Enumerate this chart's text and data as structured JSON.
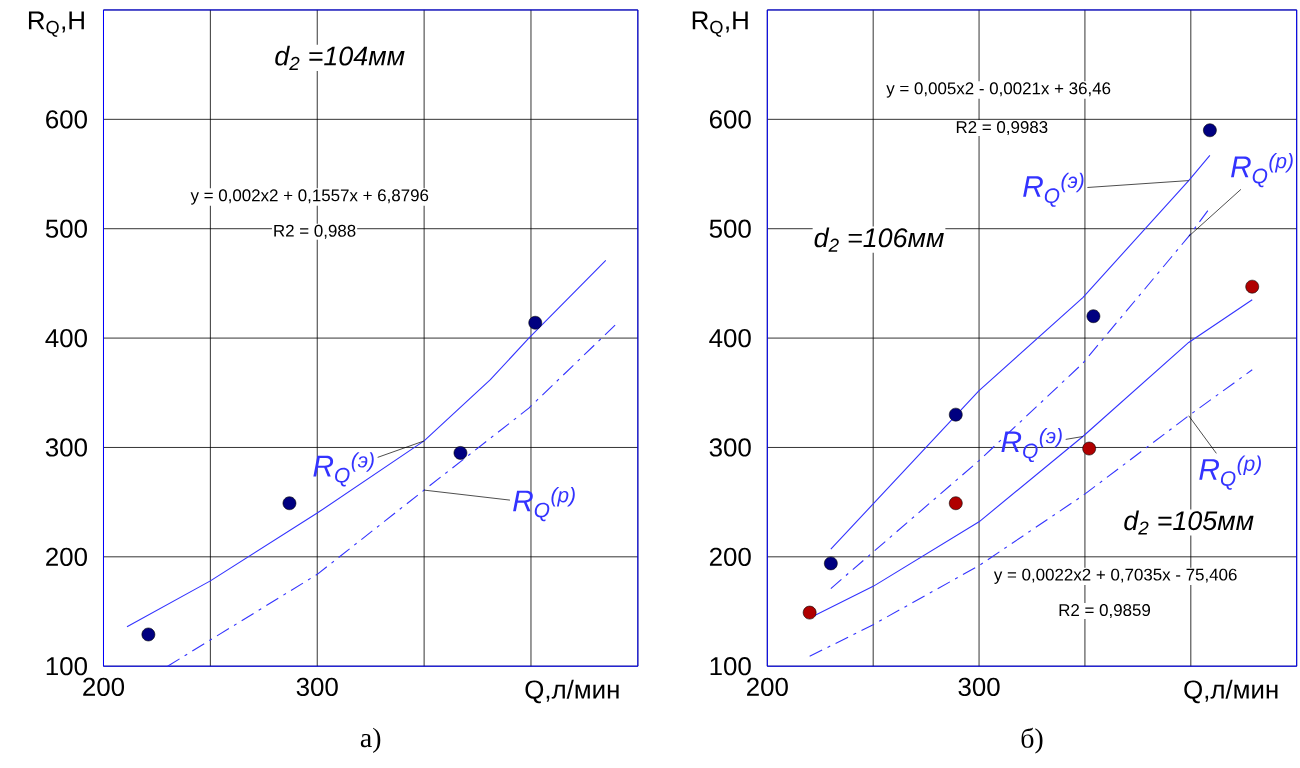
{
  "chart_data": [
    {
      "type": "scatter",
      "title": "а)",
      "xlabel": "Q,л/мин",
      "ylabel": "R$_{Q}$,H",
      "annotations": [
        "d$_{2}$ =104мм",
        "y = 0,002x2 + 0,1557x + 6,8796",
        "R2 = 0,988"
      ],
      "xlim": [
        200,
        450
      ],
      "ylim": [
        100,
        700
      ],
      "xticks": [
        200,
        {
          "value": 250,
          "label": null
        },
        300,
        {
          "value": 350,
          "label": null
        },
        {
          "value": 400,
          "label": null
        },
        {
          "value": 450,
          "label": null
        }
      ],
      "yticks": [
        100,
        200,
        300,
        400,
        500,
        600,
        {
          "value": 700,
          "label": null
        }
      ],
      "grid": true,
      "series": [
        {
          "type": "scatter",
          "marker": "circle",
          "color": "#000080",
          "x": [
            221,
            287,
            367,
            402
          ],
          "values": [
            129,
            249,
            295,
            414
          ]
        },
        {
          "type": "line",
          "name": "R$_{Q}$$^{(э)}$",
          "line_style": "solid",
          "color": "#3333ff",
          "x": [
            211,
            250,
            300,
            350,
            381,
            399,
            435
          ],
          "values": [
            136,
            178,
            240,
            306,
            362,
            400,
            471
          ]
        },
        {
          "type": "line",
          "name": "R$_{Q}$$^{(р)}$",
          "line_style": "dashed",
          "color": "#3333ff",
          "x": [
            230,
            250,
            300,
            350,
            399,
            440
          ],
          "values": [
            100,
            124,
            184,
            261,
            336,
            413
          ]
        }
      ]
    },
    {
      "type": "scatter",
      "title": "б)",
      "xlabel": "Q,л/мин",
      "ylabel": "R$_{Q}$,H",
      "annotations": [
        "y = 0,005x2 - 0,0021x + 36,46",
        "R2 = 0,9983",
        "d$_{2}$ =106мм",
        "d$_{2}$ =105мм",
        "y = 0,0022x2 + 0,7035x - 75,406",
        "R2 = 0,9859"
      ],
      "xlim": [
        200,
        450
      ],
      "ylim": [
        100,
        700
      ],
      "xticks": [
        200,
        {
          "value": 250,
          "label": null
        },
        300,
        {
          "value": 350,
          "label": null
        },
        {
          "value": 400,
          "label": null
        },
        {
          "value": 450,
          "label": null
        }
      ],
      "yticks": [
        100,
        200,
        300,
        400,
        500,
        600,
        {
          "value": 700,
          "label": null
        }
      ],
      "grid": true,
      "series": [
        {
          "type": "scatter",
          "marker": "circle",
          "color": "#000080",
          "x": [
            230,
            289,
            354,
            409
          ],
          "values": [
            194,
            330,
            420,
            590
          ]
        },
        {
          "type": "line",
          "name": "R$_{Q}$$^{(э)}$",
          "line_style": "solid",
          "color": "#3333ff",
          "x": [
            230,
            300,
            349,
            399,
            409
          ],
          "values": [
            207,
            352,
            437,
            544,
            567
          ]
        },
        {
          "type": "line",
          "name": "R$_{Q}$$^{(р)}$",
          "line_style": "dashed",
          "color": "#3333ff",
          "x": [
            230,
            300,
            349,
            399,
            409
          ],
          "values": [
            171,
            288,
            377,
            493,
            519
          ]
        },
        {
          "type": "scatter",
          "marker": "circle",
          "color": "#b00000",
          "x": [
            220,
            289,
            352,
            429
          ],
          "values": [
            149,
            249,
            299,
            447
          ]
        },
        {
          "type": "line",
          "name": "R$_{Q}$$^{(э)}$",
          "line_style": "solid",
          "color": "#3333ff",
          "x": [
            220,
            250,
            300,
            349,
            399,
            429
          ],
          "values": [
            144,
            173,
            232,
            310,
            396,
            435
          ]
        },
        {
          "type": "line",
          "name": "R$_{Q}$$^{(р)}$",
          "line_style": "dashed",
          "color": "#3333ff",
          "x": [
            220,
            250,
            300,
            349,
            399,
            429
          ],
          "values": [
            109,
            138,
            192,
            256,
            329,
            371
          ]
        }
      ]
    }
  ]
}
